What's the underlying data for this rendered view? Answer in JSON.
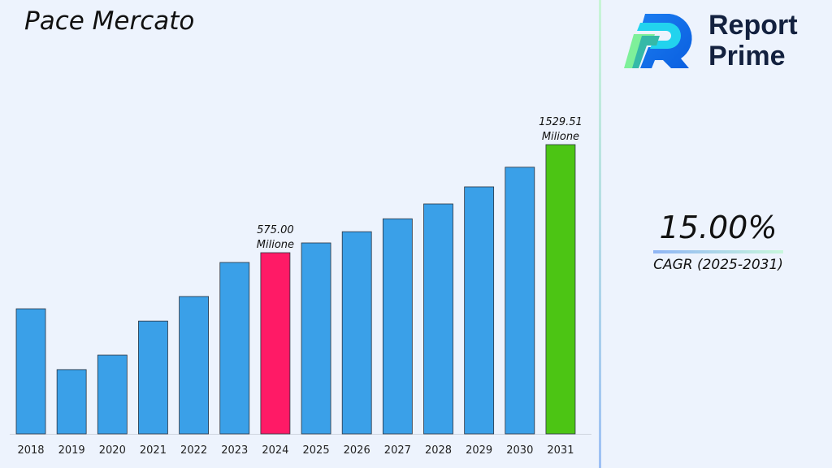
{
  "header": {
    "title": "Pace Mercato"
  },
  "brand": {
    "name_line1": "Report",
    "name_line2": "Prime"
  },
  "cagr": {
    "value": "15.00%",
    "label": "CAGR (2025-2031)"
  },
  "colors": {
    "bar": "#3aa0e8",
    "highlight_2024": "#ff1a66",
    "highlight_2031": "#4cc514",
    "background": "#edf3fd"
  },
  "chart_data": {
    "type": "bar",
    "title": "Pace Mercato",
    "xlabel": "",
    "ylabel": "",
    "categories": [
      "2018",
      "2019",
      "2020",
      "2021",
      "2022",
      "2023",
      "2024",
      "2025",
      "2026",
      "2027",
      "2028",
      "2029",
      "2030",
      "2031"
    ],
    "values": [
      397,
      204,
      250,
      358,
      436,
      544,
      575.0,
      661.25,
      760.44,
      874.5,
      1005.68,
      1156.53,
      1330.01,
      1529.51
    ],
    "data_labels": [
      {
        "category": "2024",
        "value": "575.00",
        "unit": "Milione"
      },
      {
        "category": "2031",
        "value": "1529.51",
        "unit": "Milione"
      }
    ],
    "grid": false,
    "legend": "none"
  }
}
